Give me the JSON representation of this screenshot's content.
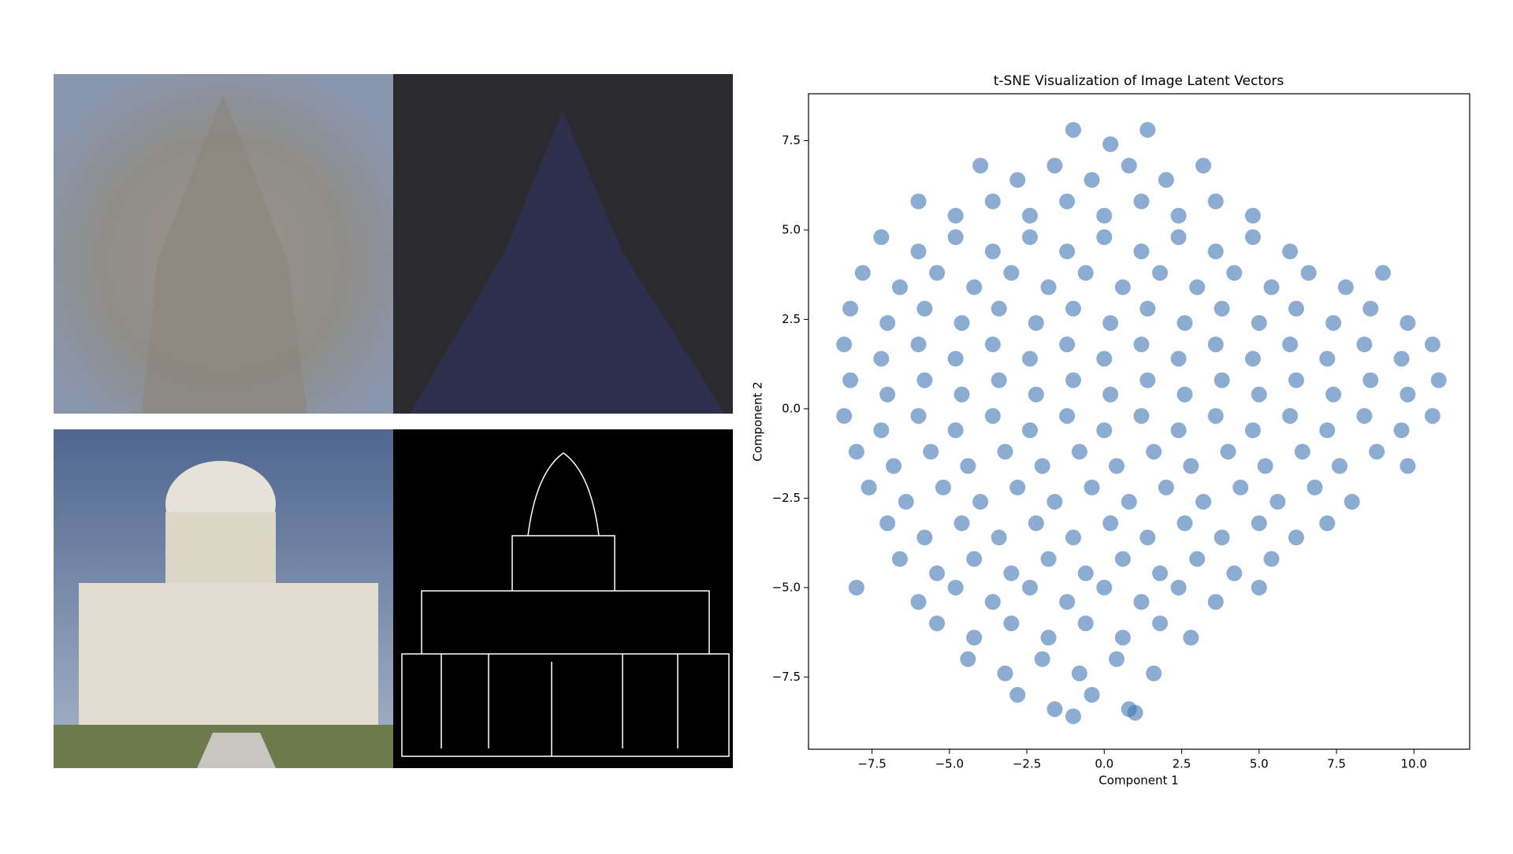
{
  "chart_data": {
    "type": "scatter",
    "title": "t-SNE Visualization of Image Latent Vectors",
    "xlabel": "Component 1",
    "ylabel": "Component 2",
    "color": "#3f76b3",
    "xlim": [
      -9.55,
      11.8
    ],
    "ylim": [
      -9.52,
      8.81
    ],
    "xticks": [
      {
        "value": -7.5,
        "label": "−7.5"
      },
      {
        "value": -5,
        "label": "−5.0"
      },
      {
        "value": -2.5,
        "label": "−2.5"
      },
      {
        "value": 0,
        "label": "0.0"
      },
      2.5,
      {
        "value": 5,
        "label": "5.0"
      },
      7.5,
      {
        "value": 10,
        "label": "10.0"
      }
    ],
    "yticks": [
      {
        "value": -7.5,
        "label": "−7.5"
      },
      {
        "value": -5,
        "label": "−5.0"
      },
      {
        "value": -2.5,
        "label": "−2.5"
      },
      {
        "value": 0,
        "label": "0.0"
      },
      2.5,
      {
        "value": 5,
        "label": "5.0"
      },
      7.5
    ],
    "x": [
      -1.0,
      0.2,
      1.4,
      -4.0,
      -2.8,
      -1.6,
      -0.4,
      0.8,
      2.0,
      3.2,
      -6.0,
      -4.8,
      -3.6,
      -2.4,
      -1.2,
      0,
      1.2,
      2.4,
      3.6,
      4.8,
      -7.2,
      -6.0,
      -4.8,
      -3.6,
      -2.4,
      -1.2,
      0,
      1.2,
      2.4,
      3.6,
      4.8,
      6.0,
      -7.8,
      -6.6,
      -5.4,
      -4.2,
      -3.0,
      -1.8,
      -0.6,
      0.6,
      1.8,
      3.0,
      4.2,
      5.4,
      6.6,
      7.8,
      9.0,
      -8.2,
      -7.0,
      -5.8,
      -4.6,
      -3.4,
      -2.2,
      -1.0,
      0.2,
      1.4,
      2.6,
      3.8,
      5.0,
      6.2,
      7.4,
      8.6,
      9.8,
      -8.4,
      -7.2,
      -6.0,
      -4.8,
      -3.6,
      -2.4,
      -1.2,
      0,
      1.2,
      2.4,
      3.6,
      4.8,
      6.0,
      7.2,
      8.4,
      9.6,
      10.6,
      -8.2,
      -7.0,
      -5.8,
      -4.6,
      -3.4,
      -2.2,
      -1.0,
      0.2,
      1.4,
      2.6,
      3.8,
      5.0,
      6.2,
      7.4,
      8.6,
      9.8,
      10.8,
      -8.4,
      -7.2,
      -6.0,
      -4.8,
      -3.6,
      -2.4,
      -1.2,
      0,
      1.2,
      2.4,
      3.6,
      4.8,
      6.0,
      7.2,
      8.4,
      9.6,
      10.6,
      -8.0,
      -6.8,
      -5.6,
      -4.4,
      -3.2,
      -2.0,
      -0.8,
      0.4,
      1.6,
      2.8,
      4.0,
      5.2,
      6.4,
      7.6,
      8.8,
      9.8,
      -7.6,
      -6.4,
      -5.2,
      -4.0,
      -2.8,
      -1.6,
      -0.4,
      0.8,
      2.0,
      3.2,
      4.4,
      5.6,
      6.8,
      8.0,
      -7.0,
      -5.8,
      -4.6,
      -3.4,
      -2.2,
      -1.0,
      0.2,
      1.4,
      2.6,
      3.8,
      5.0,
      6.2,
      7.2,
      -6.6,
      -5.4,
      -4.2,
      -3.0,
      -1.8,
      -0.6,
      0.6,
      1.8,
      3.0,
      4.2,
      5.4,
      -8.0,
      -6.0,
      -4.8,
      -3.6,
      -2.4,
      -1.2,
      0,
      1.2,
      2.4,
      3.6,
      5.0,
      -5.4,
      -4.2,
      -3.0,
      -1.8,
      -0.6,
      0.6,
      1.8,
      2.8,
      -4.4,
      -3.2,
      -2.0,
      -0.8,
      0.4,
      1.6,
      -2.8,
      -1.6,
      -0.4,
      0.8,
      -1.0,
      1.0
    ],
    "y": [
      7.8,
      7.4,
      7.8,
      6.8,
      6.4,
      6.8,
      6.4,
      6.8,
      6.4,
      6.8,
      5.8,
      5.4,
      5.8,
      5.4,
      5.8,
      5.4,
      5.8,
      5.4,
      5.8,
      5.4,
      4.8,
      4.4,
      4.8,
      4.4,
      4.8,
      4.4,
      4.8,
      4.4,
      4.8,
      4.4,
      4.8,
      4.4,
      3.8,
      3.4,
      3.8,
      3.4,
      3.8,
      3.4,
      3.8,
      3.4,
      3.8,
      3.4,
      3.8,
      3.4,
      3.8,
      3.4,
      3.8,
      2.8,
      2.4,
      2.8,
      2.4,
      2.8,
      2.4,
      2.8,
      2.4,
      2.8,
      2.4,
      2.8,
      2.4,
      2.8,
      2.4,
      2.8,
      2.4,
      1.8,
      1.4,
      1.8,
      1.4,
      1.8,
      1.4,
      1.8,
      1.4,
      1.8,
      1.4,
      1.8,
      1.4,
      1.8,
      1.4,
      1.8,
      1.4,
      1.8,
      0.8,
      0.4,
      0.8,
      0.4,
      0.8,
      0.4,
      0.8,
      0.4,
      0.8,
      0.4,
      0.8,
      0.4,
      0.8,
      0.4,
      0.8,
      0.4,
      0.8,
      -0.2,
      -0.6,
      -0.2,
      -0.6,
      -0.2,
      -0.6,
      -0.2,
      -0.6,
      -0.2,
      -0.6,
      -0.2,
      -0.6,
      -0.2,
      -0.6,
      -0.2,
      -0.6,
      -0.2,
      -1.2,
      -1.6,
      -1.2,
      -1.6,
      -1.2,
      -1.6,
      -1.2,
      -1.6,
      -1.2,
      -1.6,
      -1.2,
      -1.6,
      -1.2,
      -1.6,
      -1.2,
      -1.6,
      -2.2,
      -2.6,
      -2.2,
      -2.6,
      -2.2,
      -2.6,
      -2.2,
      -2.6,
      -2.2,
      -2.6,
      -2.2,
      -2.6,
      -2.2,
      -2.6,
      -3.2,
      -3.6,
      -3.2,
      -3.6,
      -3.2,
      -3.6,
      -3.2,
      -3.6,
      -3.2,
      -3.6,
      -3.2,
      -3.6,
      -3.2,
      -4.2,
      -4.6,
      -4.2,
      -4.6,
      -4.2,
      -4.6,
      -4.2,
      -4.6,
      -4.2,
      -4.6,
      -4.2,
      -5.0,
      -5.4,
      -5.0,
      -5.4,
      -5.0,
      -5.4,
      -5.0,
      -5.4,
      -5.0,
      -5.4,
      -5.0,
      -6.0,
      -6.4,
      -6.0,
      -6.4,
      -6.0,
      -6.4,
      -6.0,
      -6.4,
      -7.0,
      -7.4,
      -7.0,
      -7.4,
      -7.0,
      -7.4,
      -8.0,
      -8.4,
      -8.0,
      -8.4,
      -8.6,
      -8.5
    ]
  }
}
